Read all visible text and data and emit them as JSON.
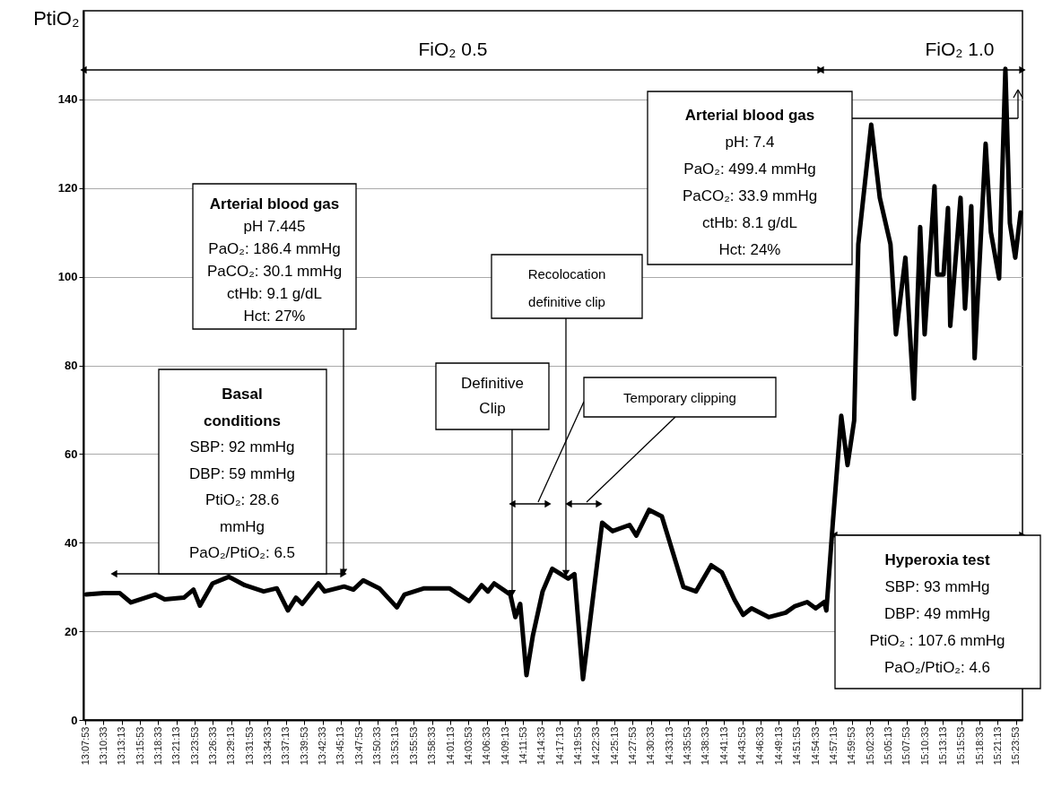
{
  "chart_data": {
    "type": "line",
    "ylabel": "PtiO₂",
    "x": [
      13.1336,
      13.1766,
      13.2157,
      13.2428,
      13.3017,
      13.3249,
      13.3716,
      13.395,
      13.4107,
      13.4415,
      13.4808,
      13.5199,
      13.566,
      13.5979,
      13.625,
      13.6446,
      13.6599,
      13.6992,
      13.7145,
      13.7617,
      13.7844,
      13.8084,
      13.8475,
      13.8903,
      13.9089,
      13.9569,
      14.0181,
      14.0661,
      14.0967,
      14.112,
      14.1273,
      14.1666,
      14.1788,
      14.1906,
      14.2059,
      14.2212,
      14.2452,
      14.2686,
      14.3077,
      14.3227,
      14.3435,
      14.3902,
      14.4155,
      14.457,
      14.4734,
      14.5046,
      14.5356,
      14.5881,
      14.6186,
      14.6558,
      14.6815,
      14.7125,
      14.7335,
      14.754,
      14.7955,
      14.837,
      14.8582,
      14.8894,
      14.9102,
      14.9309,
      14.9362,
      14.9519,
      14.9724,
      14.9877,
      15.0039,
      15.0139,
      15.0454,
      15.0663,
      15.0923,
      15.1056,
      15.1286,
      15.1493,
      15.1646,
      15.1755,
      15.1995,
      15.2061,
      15.2214,
      15.2323,
      15.2378,
      15.2629,
      15.2738,
      15.2891,
      15.2972,
      15.324,
      15.3367,
      15.3568,
      15.3721,
      15.383,
      15.3961,
      15.4092
    ],
    "series": [
      {
        "color": "#000000",
        "values": [
          28.3,
          28.6,
          28.6,
          26.5,
          28.3,
          27.2,
          27.6,
          29.4,
          25.8,
          30.8,
          32.3,
          30.4,
          29.0,
          29.7,
          24.7,
          27.6,
          26.2,
          30.8,
          29.0,
          30.1,
          29.4,
          31.5,
          29.7,
          25.4,
          28.3,
          29.7,
          29.7,
          26.8,
          30.4,
          29.0,
          30.8,
          28.3,
          23.2,
          26.2,
          10.1,
          18.9,
          29.0,
          34.1,
          31.9,
          32.9,
          9.2,
          44.5,
          42.6,
          44.0,
          41.6,
          47.4,
          45.9,
          30.0,
          29.0,
          34.9,
          33.3,
          27.1,
          23.7,
          25.2,
          23.2,
          24.2,
          25.6,
          26.6,
          25.2,
          26.6,
          24.7,
          44.5,
          68.6,
          57.5,
          67.6,
          107.3,
          134.3,
          117.8,
          107.3,
          87.0,
          104.3,
          72.5,
          111.2,
          87.0,
          120.4,
          100.5,
          100.5,
          115.5,
          88.9,
          117.8,
          92.8,
          115.9,
          81.6,
          130.0,
          110.1,
          99.6,
          146.9,
          112.1,
          104.3,
          114.5
        ]
      }
    ],
    "xlim": [
      13.127,
      15.4137
    ],
    "xticks": [
      {
        "value": 13.1314,
        "label": "13:07:53"
      },
      {
        "value": 13.1758,
        "label": "13:10:33"
      },
      {
        "value": 13.2203,
        "label": "13:13:13"
      },
      {
        "value": 13.2647,
        "label": "13:15:53"
      },
      {
        "value": 13.3092,
        "label": "13:18:33"
      },
      {
        "value": 13.3536,
        "label": "13:21:13"
      },
      {
        "value": 13.3981,
        "label": "13:23:53"
      },
      {
        "value": 13.4425,
        "label": "13:26:33"
      },
      {
        "value": 13.4869,
        "label": "13:29:13"
      },
      {
        "value": 13.5314,
        "label": "13:31:53"
      },
      {
        "value": 13.5758,
        "label": "13:34:33"
      },
      {
        "value": 13.6203,
        "label": "13:37:13"
      },
      {
        "value": 13.6647,
        "label": "13:39:53"
      },
      {
        "value": 13.7092,
        "label": "13:42:33"
      },
      {
        "value": 13.7536,
        "label": "13:45:13"
      },
      {
        "value": 13.7981,
        "label": "13:47:53"
      },
      {
        "value": 13.8425,
        "label": "13:50:33"
      },
      {
        "value": 13.8869,
        "label": "13:53:13"
      },
      {
        "value": 13.9314,
        "label": "13:55:53"
      },
      {
        "value": 13.9758,
        "label": "13:58:33"
      },
      {
        "value": 14.0203,
        "label": "14:01:13"
      },
      {
        "value": 14.0647,
        "label": "14:03:53"
      },
      {
        "value": 14.1092,
        "label": "14:06:33"
      },
      {
        "value": 14.1536,
        "label": "14:09:13"
      },
      {
        "value": 14.1981,
        "label": "14:11:53"
      },
      {
        "value": 14.2425,
        "label": "14:14:33"
      },
      {
        "value": 14.2869,
        "label": "14:17:13"
      },
      {
        "value": 14.3314,
        "label": "14:19:53"
      },
      {
        "value": 14.3758,
        "label": "14:22:33"
      },
      {
        "value": 14.4203,
        "label": "14:25:13"
      },
      {
        "value": 14.4647,
        "label": "14:27:53"
      },
      {
        "value": 14.5092,
        "label": "14:30:33"
      },
      {
        "value": 14.5536,
        "label": "14:33:13"
      },
      {
        "value": 14.5981,
        "label": "14:35:53"
      },
      {
        "value": 14.6425,
        "label": "14:38:33"
      },
      {
        "value": 14.6869,
        "label": "14:41:13"
      },
      {
        "value": 14.7314,
        "label": "14:43:53"
      },
      {
        "value": 14.7758,
        "label": "14:46:33"
      },
      {
        "value": 14.8203,
        "label": "14:49:13"
      },
      {
        "value": 14.8647,
        "label": "14:51:53"
      },
      {
        "value": 14.9092,
        "label": "14:54:33"
      },
      {
        "value": 14.9536,
        "label": "14:57:13"
      },
      {
        "value": 14.9981,
        "label": "14:59:53"
      },
      {
        "value": 15.0425,
        "label": "15:02:33"
      },
      {
        "value": 15.0869,
        "label": "15:05:13"
      },
      {
        "value": 15.1314,
        "label": "15:07:53"
      },
      {
        "value": 15.1758,
        "label": "15:10:33"
      },
      {
        "value": 15.2203,
        "label": "15:13:13"
      },
      {
        "value": 15.2647,
        "label": "15:15:53"
      },
      {
        "value": 15.3092,
        "label": "15:18:33"
      },
      {
        "value": 15.3536,
        "label": "15:21:13"
      },
      {
        "value": 15.3981,
        "label": "15:23:53"
      }
    ],
    "ylim": [
      0,
      160
    ],
    "yticks": [
      0,
      20,
      40,
      60,
      80,
      100,
      120,
      140
    ],
    "grid": "y",
    "marker": "none",
    "line_style": "solid",
    "annotations": [
      "FiO₂ 0.5",
      "FiO₂ 1.0",
      "Arterial blood gas\npH 7.445\nPaO₂: 186.4 mmHg\nPaCO₂: 30.1 mmHg\nctHb: 9.1 g/dL\nHct: 27%",
      "Basal\nconditions\nSBP: 92 mmHg\nDBP: 59 mmHg\nPtiO₂: 28.6\nmmHg\nPaO₂/PtiO₂: 6.5",
      {
        "text": "Definitive\nClip",
        "x": 14.1709,
        "y": 28.6
      },
      {
        "text": "Recolocation\ndefinitive clip",
        "x": 14.302,
        "y": 33.1
      },
      "Temporary clipping",
      "Arterial blood gas\npH: 7.4\nPaO₂: 499.4 mmHg\nPaCO₂: 33.9 mmHg\nctHb: 8.1 g/dL\nHct: 24%",
      "Hyperoxia test\nSBP: 93 mmHg\nDBP: 49 mmHg\nPtiO₂ : 107.6 mmHg\nPaO₂/PtiO₂: 4.6"
    ]
  }
}
